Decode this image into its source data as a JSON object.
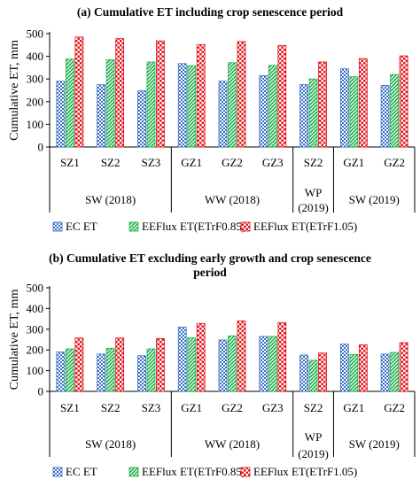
{
  "colors": {
    "ec": "#3a6fc4",
    "eeflux085": "#1db04a",
    "eeflux105": "#e0151c",
    "axis": "#000000",
    "grid": "#c8c8c8"
  },
  "patterns": {
    "ec": "checker",
    "eeflux085": "diagonal",
    "eeflux105": "checker-large"
  },
  "chart_data": [
    {
      "type": "bar",
      "title": "(a) Cumulative ET including crop senescence period",
      "ylabel": "Cumulative ET, mm",
      "xlabel": "",
      "ylim": [
        0,
        500
      ],
      "yticks": [
        0,
        100,
        200,
        300,
        400,
        500
      ],
      "grid": false,
      "legend_position": "bottom",
      "categories": [
        "SZ1",
        "SZ2",
        "SZ3",
        "GZ1",
        "GZ2",
        "GZ3",
        "SZ2",
        "GZ1",
        "GZ2"
      ],
      "groups": [
        {
          "label": "SW (2018)",
          "span": [
            0,
            2
          ]
        },
        {
          "label": "WW (2018)",
          "span": [
            3,
            5
          ]
        },
        {
          "label": "WP\n(2019)",
          "span": [
            6,
            6
          ]
        },
        {
          "label": "SW (2019)",
          "span": [
            7,
            8
          ]
        }
      ],
      "series": [
        {
          "name": "EC ET",
          "key": "ec",
          "values": [
            290,
            275,
            248,
            368,
            290,
            315,
            275,
            345,
            272
          ]
        },
        {
          "name": "EEFlux ET(ETrF0.85)",
          "key": "eeflux085",
          "values": [
            388,
            385,
            375,
            358,
            372,
            360,
            300,
            310,
            320
          ]
        },
        {
          "name": "EEFlux ET(ETrF1.05)",
          "key": "eeflux105",
          "values": [
            485,
            478,
            468,
            452,
            465,
            448,
            375,
            390,
            402
          ]
        }
      ]
    },
    {
      "type": "bar",
      "title": "(b) Cumulative ET excluding early growth and crop senescence\nperiod",
      "ylabel": "Cumulative ET, mm",
      "xlabel": "",
      "ylim": [
        0,
        500
      ],
      "yticks": [
        0,
        100,
        200,
        300,
        400,
        500
      ],
      "grid": false,
      "legend_position": "bottom",
      "categories": [
        "SZ1",
        "SZ2",
        "SZ3",
        "GZ1",
        "GZ2",
        "GZ3",
        "SZ2",
        "GZ1",
        "GZ2"
      ],
      "groups": [
        {
          "label": "SW (2018)",
          "span": [
            0,
            2
          ]
        },
        {
          "label": "WW (2018)",
          "span": [
            3,
            5
          ]
        },
        {
          "label": "WP\n(2019)",
          "span": [
            6,
            6
          ]
        },
        {
          "label": "SW (2019)",
          "span": [
            7,
            8
          ]
        }
      ],
      "series": [
        {
          "name": "EC ET",
          "key": "ec",
          "values": [
            190,
            180,
            172,
            310,
            248,
            265,
            175,
            228,
            180
          ]
        },
        {
          "name": "EEFlux ET(ETrF0.85)",
          "key": "eeflux085",
          "values": [
            205,
            208,
            205,
            258,
            268,
            265,
            150,
            178,
            188
          ]
        },
        {
          "name": "EEFlux ET(ETrF1.05)",
          "key": "eeflux105",
          "values": [
            258,
            258,
            255,
            328,
            340,
            332,
            185,
            225,
            235
          ]
        }
      ]
    }
  ]
}
